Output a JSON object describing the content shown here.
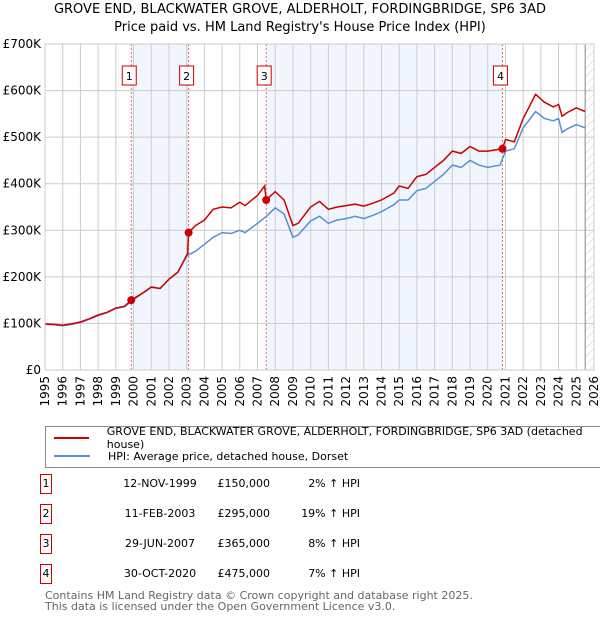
{
  "chart_data": {
    "type": "line",
    "title": "GROVE END, BLACKWATER GROVE, ALDERHOLT, FORDINGBRIDGE, SP6 3AD",
    "subtitle": "Price paid vs. HM Land Registry's House Price Index (HPI)",
    "xlim": [
      1995,
      2026
    ],
    "ylim": [
      0,
      700000
    ],
    "x_ticks": [
      "1995",
      "1996",
      "1997",
      "1998",
      "1999",
      "2000",
      "2001",
      "2002",
      "2003",
      "2004",
      "2005",
      "2006",
      "2007",
      "2008",
      "2009",
      "2010",
      "2011",
      "2012",
      "2013",
      "2014",
      "2015",
      "2016",
      "2017",
      "2018",
      "2019",
      "2020",
      "2021",
      "2022",
      "2023",
      "2024",
      "2025",
      "2026"
    ],
    "y_ticks": [
      {
        "v": 0,
        "label": "£0"
      },
      {
        "v": 100000,
        "label": "£100K"
      },
      {
        "v": 200000,
        "label": "£200K"
      },
      {
        "v": 300000,
        "label": "£300K"
      },
      {
        "v": 400000,
        "label": "£400K"
      },
      {
        "v": 500000,
        "label": "£500K"
      },
      {
        "v": 600000,
        "label": "£600K"
      },
      {
        "v": 700000,
        "label": "£700K"
      }
    ],
    "grid": true,
    "shaded_periods": [
      [
        1999.87,
        2003.11
      ],
      [
        2007.49,
        2020.83
      ]
    ],
    "forecast_from": 2025.5,
    "series": [
      {
        "name": "GROVE END, BLACKWATER GROVE, ALDERHOLT, FORDINGBRIDGE, SP6 3AD (detached house)",
        "color": "#cc0000",
        "x": [
          1995,
          1995.5,
          1996,
          1996.5,
          1997,
          1997.5,
          1998,
          1998.5,
          1999,
          1999.5,
          1999.87,
          2000.5,
          2001,
          2001.5,
          2002,
          2002.5,
          2003.05,
          2003.11,
          2003.5,
          2004,
          2004.5,
          2005,
          2005.5,
          2006,
          2006.3,
          2007,
          2007.4,
          2007.49,
          2008,
          2008.5,
          2009,
          2009.3,
          2010,
          2010.5,
          2011,
          2011.5,
          2012,
          2012.5,
          2013,
          2013.5,
          2014,
          2014.7,
          2015,
          2015.5,
          2016,
          2016.5,
          2017,
          2017.5,
          2018,
          2018.5,
          2019,
          2019.5,
          2020,
          2020.83,
          2021,
          2021.5,
          2022,
          2022.7,
          2023.2,
          2023.7,
          2024,
          2024.2,
          2024.5,
          2025,
          2025.5
        ],
        "y": [
          99000,
          98000,
          96000,
          99000,
          103000,
          110000,
          118000,
          124000,
          133000,
          137000,
          150000,
          165000,
          178000,
          175000,
          195000,
          210000,
          250000,
          295000,
          310000,
          322000,
          345000,
          350000,
          348000,
          360000,
          353000,
          375000,
          395000,
          365000,
          383000,
          365000,
          310000,
          315000,
          350000,
          362000,
          345000,
          350000,
          353000,
          356000,
          352000,
          358000,
          365000,
          380000,
          395000,
          390000,
          415000,
          420000,
          435000,
          450000,
          470000,
          465000,
          480000,
          470000,
          470000,
          475000,
          495000,
          490000,
          540000,
          592000,
          575000,
          565000,
          570000,
          545000,
          553000,
          563000,
          555000
        ]
      },
      {
        "name": "HPI: Average price, detached house, Dorset",
        "color": "#5b8fd4",
        "x": [
          1995,
          1995.5,
          1996,
          1996.5,
          1997,
          1997.5,
          1998,
          1998.5,
          1999,
          1999.5,
          1999.87,
          2000.5,
          2001,
          2001.5,
          2002,
          2002.5,
          2003,
          2003.5,
          2004,
          2004.5,
          2005,
          2005.5,
          2006,
          2006.3,
          2007,
          2007.5,
          2008,
          2008.5,
          2009,
          2009.3,
          2010,
          2010.5,
          2011,
          2011.5,
          2012,
          2012.5,
          2013,
          2013.5,
          2014,
          2014.7,
          2015,
          2015.5,
          2016,
          2016.5,
          2017,
          2017.5,
          2018,
          2018.5,
          2019,
          2019.5,
          2020,
          2020.7,
          2021,
          2021.5,
          2022,
          2022.7,
          2023.2,
          2023.7,
          2024,
          2024.2,
          2024.5,
          2025,
          2025.5
        ],
        "y": [
          98000,
          97000,
          95000,
          98000,
          102000,
          109000,
          117000,
          123000,
          132000,
          136000,
          147000,
          165000,
          178000,
          175000,
          195000,
          210000,
          245000,
          255000,
          270000,
          285000,
          295000,
          293000,
          300000,
          295000,
          315000,
          330000,
          348000,
          335000,
          285000,
          290000,
          320000,
          330000,
          315000,
          322000,
          325000,
          330000,
          325000,
          332000,
          340000,
          355000,
          365000,
          365000,
          385000,
          390000,
          405000,
          420000,
          440000,
          435000,
          450000,
          440000,
          435000,
          440000,
          470000,
          475000,
          520000,
          555000,
          540000,
          535000,
          540000,
          510000,
          518000,
          527000,
          520000
        ]
      }
    ],
    "sales": [
      {
        "num": "1",
        "x": 1999.87,
        "y": 150000,
        "date": "12-NOV-1999",
        "price": "£150,000",
        "hpi": "2% ↑ HPI"
      },
      {
        "num": "2",
        "x": 2003.11,
        "y": 295000,
        "date": "11-FEB-2003",
        "price": "£295,000",
        "hpi": "19% ↑ HPI"
      },
      {
        "num": "3",
        "x": 2007.49,
        "y": 365000,
        "date": "29-JUN-2007",
        "price": "£365,000",
        "hpi": "8% ↑ HPI"
      },
      {
        "num": "4",
        "x": 2020.83,
        "y": 475000,
        "date": "30-OCT-2020",
        "price": "£475,000",
        "hpi": "7% ↑ HPI"
      }
    ]
  },
  "title_line1": "GROVE END, BLACKWATER GROVE, ALDERHOLT, FORDINGBRIDGE, SP6 3AD",
  "title_line2": "Price paid vs. HM Land Registry's House Price Index (HPI)",
  "legend": {
    "property": "GROVE END, BLACKWATER GROVE, ALDERHOLT, FORDINGBRIDGE, SP6 3AD (detached house)",
    "hpi": "HPI: Average price, detached house, Dorset"
  },
  "footer": {
    "line1": "Contains HM Land Registry data © Crown copyright and database right 2025.",
    "line2": "This data is licensed under the Open Government Licence v3.0."
  }
}
